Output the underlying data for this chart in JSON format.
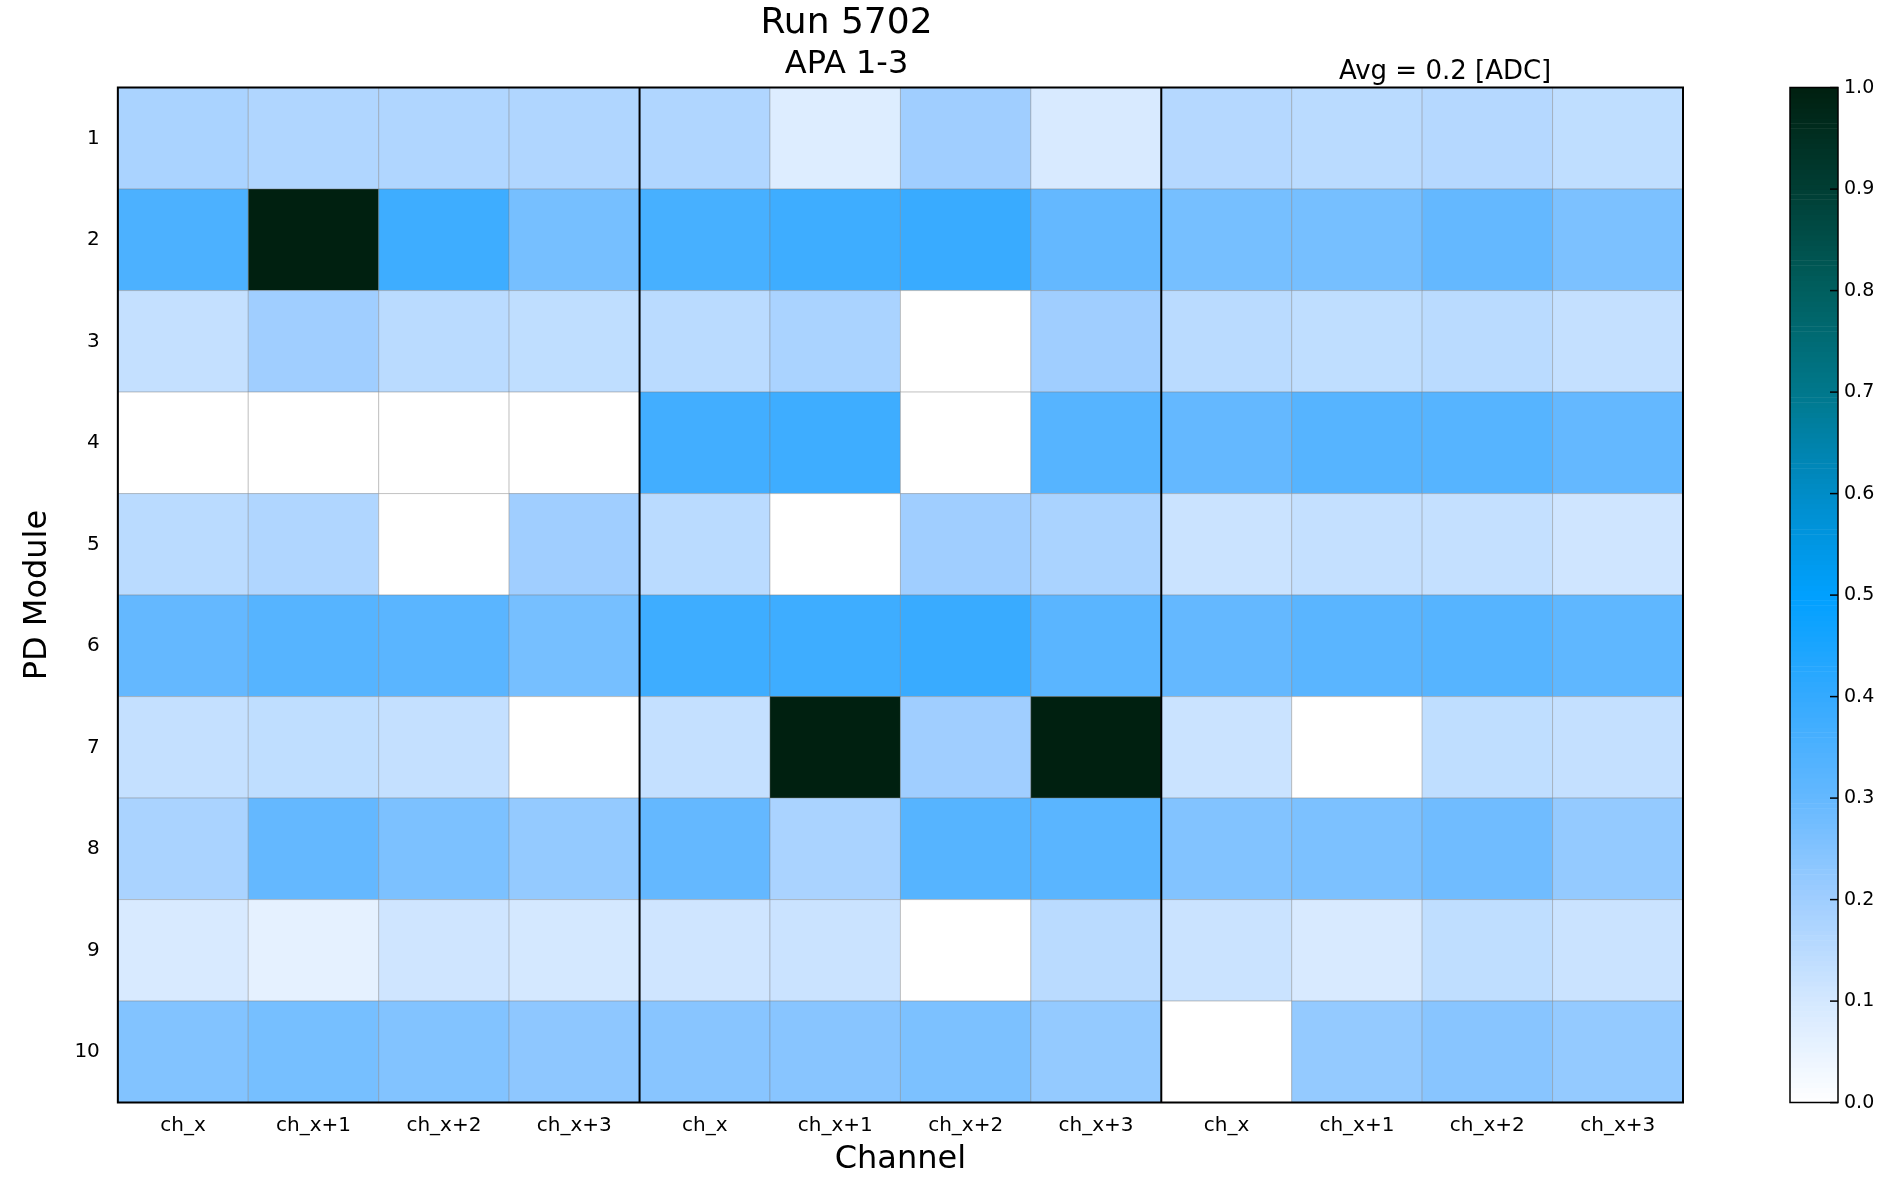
{
  "chart_data": {
    "type": "heatmap",
    "title": "Run 5702",
    "subtitle": "APA 1-3",
    "xlabel": "Channel",
    "ylabel": "PD Module",
    "annotations": [
      "Avg = 0.2 [ADC]"
    ],
    "categories": [
      "ch_x",
      "ch_x+1",
      "ch_x+2",
      "ch_x+3",
      "ch_x",
      "ch_x+1",
      "ch_x+2",
      "ch_x+3",
      "ch_x",
      "ch_x+1",
      "ch_x+2",
      "ch_x+3"
    ],
    "y_categories": [
      "1",
      "2",
      "3",
      "4",
      "5",
      "6",
      "7",
      "8",
      "9",
      "10"
    ],
    "cells": [
      [
        0.18,
        0.17,
        0.17,
        0.17,
        0.17,
        0.08,
        0.2,
        0.09,
        0.16,
        0.15,
        0.16,
        0.14
      ],
      [
        0.35,
        1.0,
        0.38,
        0.27,
        0.36,
        0.38,
        0.39,
        0.3,
        0.27,
        0.27,
        0.3,
        0.26
      ],
      [
        0.13,
        0.2,
        0.15,
        0.14,
        0.15,
        0.18,
        0,
        0.2,
        0.15,
        0.14,
        0.15,
        0.13
      ],
      [
        0,
        0,
        0,
        0,
        0.37,
        0.38,
        0,
        0.33,
        0.3,
        0.33,
        0.33,
        0.3
      ],
      [
        0.15,
        0.17,
        0,
        0.2,
        0.15,
        0,
        0.2,
        0.18,
        0.12,
        0.13,
        0.13,
        0.11
      ],
      [
        0.3,
        0.33,
        0.32,
        0.27,
        0.38,
        0.38,
        0.39,
        0.32,
        0.3,
        0.32,
        0.33,
        0.31
      ],
      [
        0.13,
        0.14,
        0.13,
        0,
        0.13,
        1.0,
        0.2,
        1.0,
        0.12,
        0,
        0.14,
        0.13
      ],
      [
        0.18,
        0.3,
        0.26,
        0.22,
        0.3,
        0.18,
        0.33,
        0.32,
        0.25,
        0.26,
        0.28,
        0.22
      ],
      [
        0.09,
        0.06,
        0.11,
        0.1,
        0.11,
        0.12,
        0,
        0.15,
        0.12,
        0.09,
        0.14,
        0.12
      ],
      [
        0.25,
        0.27,
        0.25,
        0.23,
        0.24,
        0.24,
        0.26,
        0.22,
        0,
        0.22,
        0.24,
        0.22
      ]
    ],
    "clim": [
      0,
      1
    ],
    "cticks": [
      {
        "value": 0,
        "label": "0.0"
      },
      {
        "value": 0.1,
        "label": "0.1"
      },
      {
        "value": 0.2,
        "label": "0.2"
      },
      {
        "value": 0.3,
        "label": "0.3"
      },
      {
        "value": 0.4,
        "label": "0.4"
      },
      {
        "value": 0.5,
        "label": "0.5"
      },
      {
        "value": 0.6,
        "label": "0.6"
      },
      {
        "value": 0.7,
        "label": "0.7"
      },
      {
        "value": 0.8,
        "label": "0.8"
      },
      {
        "value": 0.9,
        "label": "0.9"
      },
      {
        "value": 1,
        "label": "1.0"
      }
    ]
  }
}
